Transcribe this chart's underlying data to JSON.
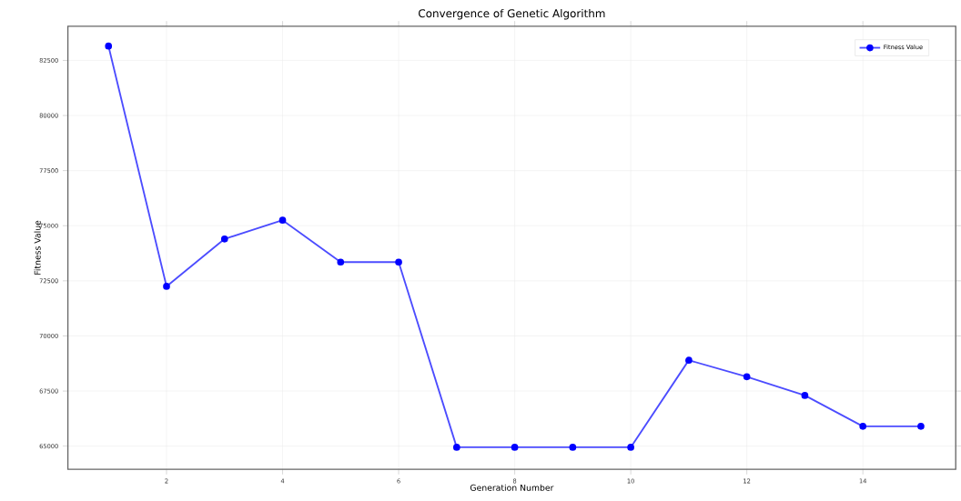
{
  "chart_data": {
    "type": "line",
    "title": "Convergence of Genetic Algorithm",
    "xlabel": "Generation Number",
    "ylabel": "Fitness Value",
    "x": [
      1,
      2,
      3,
      4,
      5,
      6,
      7,
      8,
      9,
      10,
      11,
      12,
      13,
      14,
      15
    ],
    "series": [
      {
        "name": "Fitness Value",
        "color": "#0000ff",
        "values": [
          83150,
          72250,
          74400,
          75250,
          73350,
          73350,
          64950,
          64950,
          64950,
          64950,
          68900,
          68150,
          67300,
          65900,
          65900
        ]
      }
    ],
    "xlim": [
      0.3,
      15.6
    ],
    "ylim": [
      63950,
      84050
    ],
    "xticks": [
      2,
      4,
      6,
      8,
      10,
      12,
      14
    ],
    "yticks": [
      65000,
      67500,
      70000,
      72500,
      75000,
      77500,
      80000,
      82500
    ],
    "grid": true,
    "legend": "top right",
    "marker": "circle",
    "line_style": "solid"
  }
}
